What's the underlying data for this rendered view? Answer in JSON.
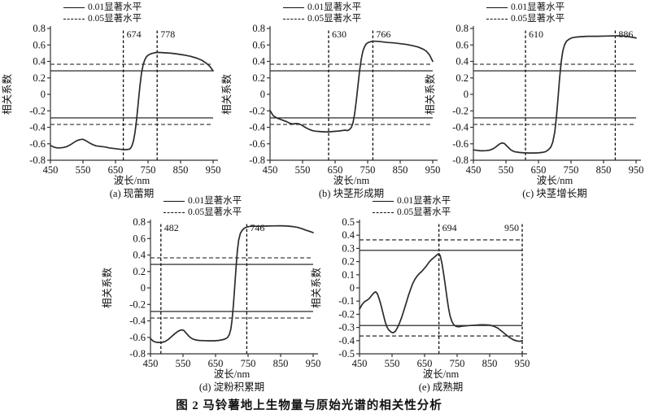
{
  "figure_caption": "图 2  马铃薯地上生物量与原始光谱的相关性分析",
  "legend": {
    "solid_label": "0.01显著水平",
    "dashed_label": "0.05显著水平"
  },
  "chart_data": [
    {
      "type": "line",
      "caption": "(a) 现蕾期",
      "xlabel": "波长/nm",
      "ylabel": "相关系数",
      "xlim": [
        450,
        950
      ],
      "xticks": [
        450,
        550,
        650,
        750,
        850,
        950
      ],
      "ylim": [
        -0.8,
        0.8
      ],
      "yticks": [
        "0.8",
        "0.6",
        "0.4",
        "0.2",
        "0",
        "-0.2",
        "-0.4",
        "-0.6",
        "-0.8"
      ],
      "grid": false,
      "legend_position": "above-plot",
      "significance_lines": {
        "solid_001": [
          0.285,
          -0.285
        ],
        "dashed_005": [
          0.365,
          -0.365
        ]
      },
      "marked_wavelengths": [
        {
          "label": "674",
          "value": 674,
          "label_side": "right"
        },
        {
          "label": "778",
          "value": 778,
          "label_side": "right"
        }
      ],
      "series": [
        {
          "name": "correlation",
          "x": [
            450,
            460,
            470,
            480,
            490,
            500,
            510,
            520,
            530,
            540,
            550,
            560,
            570,
            580,
            590,
            600,
            610,
            620,
            630,
            640,
            650,
            660,
            670,
            680,
            690,
            695,
            700,
            705,
            710,
            715,
            720,
            725,
            730,
            735,
            740,
            745,
            750,
            760,
            770,
            778,
            790,
            800,
            820,
            840,
            860,
            880,
            900,
            915,
            930,
            940,
            950
          ],
          "y": [
            -0.62,
            -0.64,
            -0.65,
            -0.65,
            -0.645,
            -0.635,
            -0.615,
            -0.59,
            -0.565,
            -0.55,
            -0.545,
            -0.565,
            -0.59,
            -0.61,
            -0.625,
            -0.63,
            -0.635,
            -0.64,
            -0.65,
            -0.655,
            -0.66,
            -0.665,
            -0.67,
            -0.672,
            -0.668,
            -0.66,
            -0.63,
            -0.57,
            -0.46,
            -0.3,
            -0.1,
            0.1,
            0.26,
            0.36,
            0.42,
            0.455,
            0.475,
            0.495,
            0.505,
            0.51,
            0.508,
            0.505,
            0.5,
            0.49,
            0.478,
            0.462,
            0.44,
            0.415,
            0.375,
            0.34,
            0.285
          ]
        }
      ]
    },
    {
      "type": "line",
      "caption": "(b) 块茎形成期",
      "xlabel": "波长/nm",
      "ylabel": "相关系数",
      "xlim": [
        450,
        950
      ],
      "xticks": [
        450,
        550,
        650,
        750,
        850,
        950
      ],
      "ylim": [
        -0.8,
        0.8
      ],
      "yticks": [
        "0.8",
        "0.6",
        "0.4",
        "0.2",
        "0",
        "-0.2",
        "-0.4",
        "-0.6",
        "-0.8"
      ],
      "grid": false,
      "legend_position": "above-plot",
      "significance_lines": {
        "solid_001": [
          0.285,
          -0.285
        ],
        "dashed_005": [
          0.365,
          -0.365
        ]
      },
      "marked_wavelengths": [
        {
          "label": "630",
          "value": 630,
          "label_side": "right"
        },
        {
          "label": "766",
          "value": 766,
          "label_side": "right"
        }
      ],
      "series": [
        {
          "name": "correlation",
          "x": [
            450,
            455,
            460,
            470,
            480,
            490,
            500,
            510,
            520,
            530,
            540,
            550,
            560,
            570,
            580,
            590,
            600,
            615,
            630,
            645,
            660,
            670,
            680,
            688,
            695,
            700,
            705,
            710,
            715,
            720,
            725,
            730,
            735,
            740,
            745,
            752,
            760,
            766,
            775,
            790,
            810,
            830,
            850,
            870,
            890,
            905,
            920,
            930,
            940,
            950
          ],
          "y": [
            -0.195,
            -0.23,
            -0.26,
            -0.285,
            -0.3,
            -0.315,
            -0.33,
            -0.35,
            -0.36,
            -0.355,
            -0.36,
            -0.38,
            -0.405,
            -0.425,
            -0.44,
            -0.447,
            -0.45,
            -0.455,
            -0.455,
            -0.45,
            -0.445,
            -0.44,
            -0.435,
            -0.44,
            -0.425,
            -0.4,
            -0.345,
            -0.235,
            -0.08,
            0.1,
            0.28,
            0.42,
            0.52,
            0.575,
            0.61,
            0.63,
            0.64,
            0.645,
            0.645,
            0.64,
            0.63,
            0.625,
            0.615,
            0.605,
            0.59,
            0.575,
            0.55,
            0.525,
            0.48,
            0.4
          ]
        }
      ]
    },
    {
      "type": "line",
      "caption": "(c) 块茎增长期",
      "xlabel": "波长/nm",
      "ylabel": "相关系数",
      "xlim": [
        450,
        950
      ],
      "xticks": [
        450,
        550,
        650,
        750,
        850,
        950
      ],
      "ylim": [
        -0.8,
        0.8
      ],
      "yticks": [
        "0.8",
        "0.6",
        "0.4",
        "0.2",
        "0",
        "-0.2",
        "-0.4",
        "-0.6",
        "-0.8"
      ],
      "grid": false,
      "legend_position": "above-plot",
      "significance_lines": {
        "solid_001": [
          0.285,
          -0.285
        ],
        "dashed_005": [
          0.365,
          -0.365
        ]
      },
      "marked_wavelengths": [
        {
          "label": "610",
          "value": 610,
          "label_side": "right"
        },
        {
          "label": "886",
          "value": 886,
          "label_side": "right"
        }
      ],
      "series": [
        {
          "name": "correlation",
          "x": [
            450,
            460,
            470,
            480,
            490,
            500,
            510,
            520,
            530,
            538,
            545,
            555,
            565,
            575,
            590,
            605,
            620,
            635,
            650,
            662,
            672,
            680,
            688,
            694,
            700,
            705,
            710,
            715,
            720,
            725,
            730,
            736,
            744,
            752,
            765,
            780,
            800,
            830,
            860,
            886,
            905,
            920,
            935,
            950
          ],
          "y": [
            -0.675,
            -0.68,
            -0.685,
            -0.685,
            -0.683,
            -0.678,
            -0.663,
            -0.635,
            -0.603,
            -0.59,
            -0.597,
            -0.636,
            -0.675,
            -0.695,
            -0.705,
            -0.71,
            -0.712,
            -0.712,
            -0.71,
            -0.705,
            -0.695,
            -0.675,
            -0.64,
            -0.58,
            -0.46,
            -0.28,
            -0.05,
            0.2,
            0.4,
            0.53,
            0.6,
            0.645,
            0.67,
            0.685,
            0.695,
            0.7,
            0.705,
            0.705,
            0.708,
            0.71,
            0.71,
            0.705,
            0.695,
            0.685
          ]
        }
      ]
    },
    {
      "type": "line",
      "caption": "(d) 淀粉积累期",
      "xlabel": "波长/nm",
      "ylabel": "相关系数",
      "xlim": [
        450,
        950
      ],
      "xticks": [
        450,
        550,
        650,
        750,
        850,
        950
      ],
      "ylim": [
        -0.8,
        0.8
      ],
      "yticks": [
        "0.8",
        "0.6",
        "0.4",
        "0.2",
        "0",
        "-0.2",
        "-0.4",
        "-0.6",
        "-0.8"
      ],
      "grid": false,
      "legend_position": "above-plot",
      "significance_lines": {
        "solid_001": [
          0.285,
          -0.285
        ],
        "dashed_005": [
          0.365,
          -0.365
        ]
      },
      "marked_wavelengths": [
        {
          "label": "482",
          "value": 482,
          "label_side": "right"
        },
        {
          "label": "746",
          "value": 746,
          "label_side": "right"
        }
      ],
      "series": [
        {
          "name": "correlation",
          "x": [
            450,
            458,
            466,
            475,
            485,
            495,
            505,
            515,
            525,
            535,
            545,
            552,
            560,
            570,
            580,
            590,
            600,
            615,
            630,
            645,
            658,
            668,
            678,
            686,
            692,
            697,
            701,
            705,
            709,
            713,
            717,
            721,
            726,
            732,
            738,
            746,
            756,
            770,
            790,
            810,
            830,
            850,
            870,
            888,
            902,
            915,
            928,
            940,
            950
          ],
          "y": [
            -0.615,
            -0.645,
            -0.658,
            -0.662,
            -0.662,
            -0.65,
            -0.625,
            -0.59,
            -0.555,
            -0.525,
            -0.51,
            -0.515,
            -0.55,
            -0.595,
            -0.62,
            -0.632,
            -0.638,
            -0.64,
            -0.642,
            -0.642,
            -0.638,
            -0.632,
            -0.622,
            -0.605,
            -0.57,
            -0.5,
            -0.38,
            -0.2,
            0.02,
            0.25,
            0.45,
            0.58,
            0.66,
            0.7,
            0.725,
            0.74,
            0.748,
            0.75,
            0.75,
            0.752,
            0.754,
            0.755,
            0.752,
            0.745,
            0.735,
            0.72,
            0.7,
            0.685,
            0.672
          ]
        }
      ]
    },
    {
      "type": "line",
      "caption": "(e) 成熟期",
      "xlabel": "波长/nm",
      "ylabel": "相关系数",
      "xlim": [
        450,
        950
      ],
      "xticks": [
        450,
        550,
        650,
        750,
        850,
        950
      ],
      "ylim": [
        -0.5,
        0.5
      ],
      "yticks": [
        "0.5",
        "0.4",
        "0.3",
        "0.2",
        "0.1",
        "0",
        "-0.1",
        "-0.2",
        "-0.3",
        "-0.4",
        "-0.5"
      ],
      "grid": false,
      "legend_position": "above-plot",
      "significance_lines": {
        "solid_001": [
          0.285,
          -0.285
        ],
        "dashed_005": [
          0.365,
          -0.365
        ]
      },
      "marked_wavelengths": [
        {
          "label": "694",
          "value": 694,
          "label_side": "right"
        },
        {
          "label": "950",
          "value": 950,
          "label_side": "left"
        }
      ],
      "series": [
        {
          "name": "correlation",
          "x": [
            450,
            458,
            465,
            472,
            480,
            488,
            495,
            500,
            505,
            510,
            516,
            522,
            528,
            534,
            540,
            547,
            553,
            560,
            567,
            574,
            580,
            587,
            594,
            600,
            607,
            613,
            620,
            627,
            634,
            641,
            648,
            655,
            662,
            669,
            676,
            683,
            690,
            694,
            698,
            703,
            708,
            713,
            718,
            723,
            728,
            734,
            740,
            747,
            755,
            765,
            775,
            790,
            805,
            820,
            835,
            850,
            862,
            875,
            888,
            900,
            912,
            924,
            935,
            944,
            950
          ],
          "y": [
            -0.16,
            -0.125,
            -0.105,
            -0.095,
            -0.08,
            -0.055,
            -0.035,
            -0.03,
            -0.045,
            -0.08,
            -0.13,
            -0.19,
            -0.25,
            -0.295,
            -0.32,
            -0.335,
            -0.34,
            -0.33,
            -0.3,
            -0.26,
            -0.22,
            -0.165,
            -0.11,
            -0.06,
            -0.01,
            0.03,
            0.065,
            0.09,
            0.11,
            0.125,
            0.145,
            0.165,
            0.19,
            0.21,
            0.225,
            0.24,
            0.255,
            0.26,
            0.245,
            0.19,
            0.115,
            0.03,
            -0.06,
            -0.145,
            -0.21,
            -0.255,
            -0.28,
            -0.292,
            -0.295,
            -0.29,
            -0.288,
            -0.285,
            -0.283,
            -0.28,
            -0.28,
            -0.282,
            -0.29,
            -0.305,
            -0.33,
            -0.355,
            -0.378,
            -0.395,
            -0.403,
            -0.405,
            -0.4
          ]
        }
      ]
    }
  ]
}
